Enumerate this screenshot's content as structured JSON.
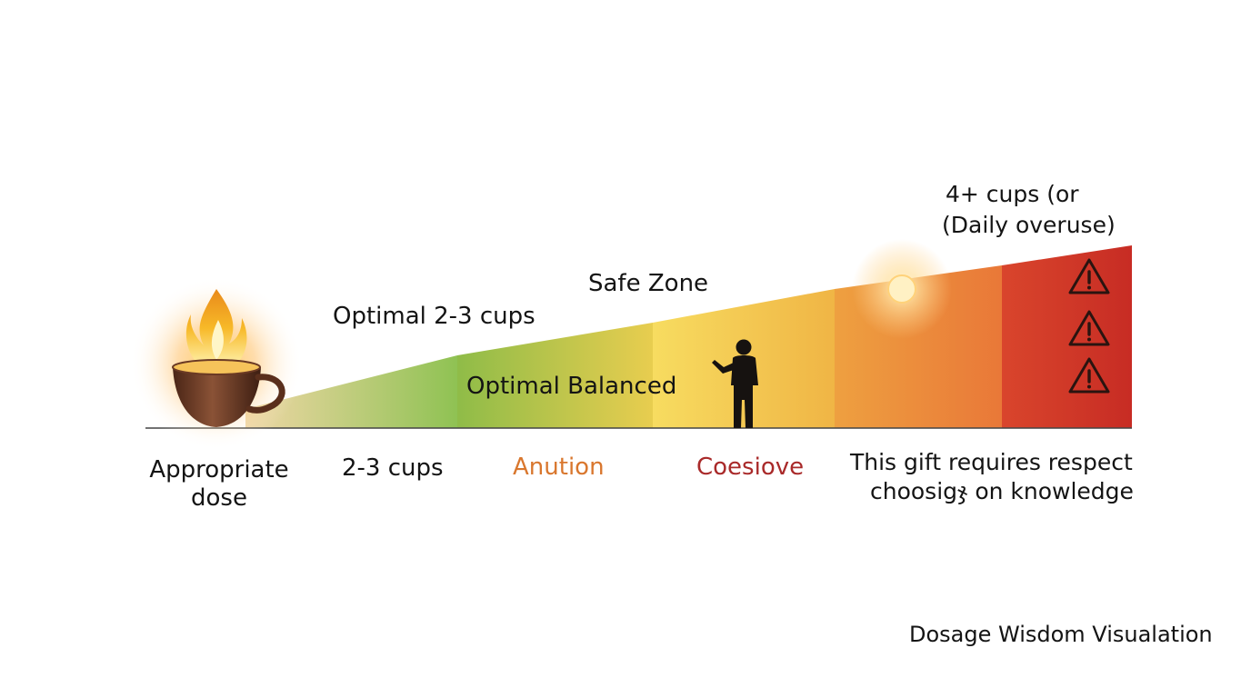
{
  "diagram": {
    "bands": [
      {
        "name": "green-light",
        "color_start": "#efd7a6",
        "color_end": "#8fc253"
      },
      {
        "name": "green",
        "color_start": "#8fc253",
        "color_end": "#5da646"
      },
      {
        "name": "yellow-green",
        "color_start": "#8fbc48",
        "color_end": "#e8cd4f"
      },
      {
        "name": "yellow",
        "color_start": "#f7dc60",
        "color_end": "#f0b545"
      },
      {
        "name": "orange",
        "color_start": "#eea040",
        "color_end": "#e97838"
      },
      {
        "name": "red",
        "color_start": "#d9452c",
        "color_end": "#c72c24"
      }
    ],
    "labels": {
      "cap_top_line1": "4+ cups (or",
      "cap_top_line2": "(Daily overuse)",
      "safe_zone": "Safe Zone",
      "optimal_cups": "Optimal 2-3 cups",
      "optimal_balanced": "Optimal Balanced"
    },
    "below_labels": {
      "appropriate_line1": "Appropriate",
      "appropriate_line2": "dose",
      "two_three": "2-3 cups",
      "anution": "Anution",
      "coesiove": "Coesiove",
      "respect_line1": "This gift requires respect",
      "respect_line2": "choosigჯ on knowledge"
    },
    "footer": "Dosage Wisdom Visualation",
    "colors": {
      "text": "#141414",
      "anution": "#d9772e",
      "coesiove": "#a92a2a",
      "cup": "#6b3a24",
      "flame": "#f7b928",
      "warning": "#2a1410"
    },
    "icons": [
      "coffee-cup-icon",
      "flame-icon",
      "person-silhouette-icon",
      "sun-icon",
      "warning-icon",
      "warning-icon",
      "warning-icon"
    ]
  }
}
